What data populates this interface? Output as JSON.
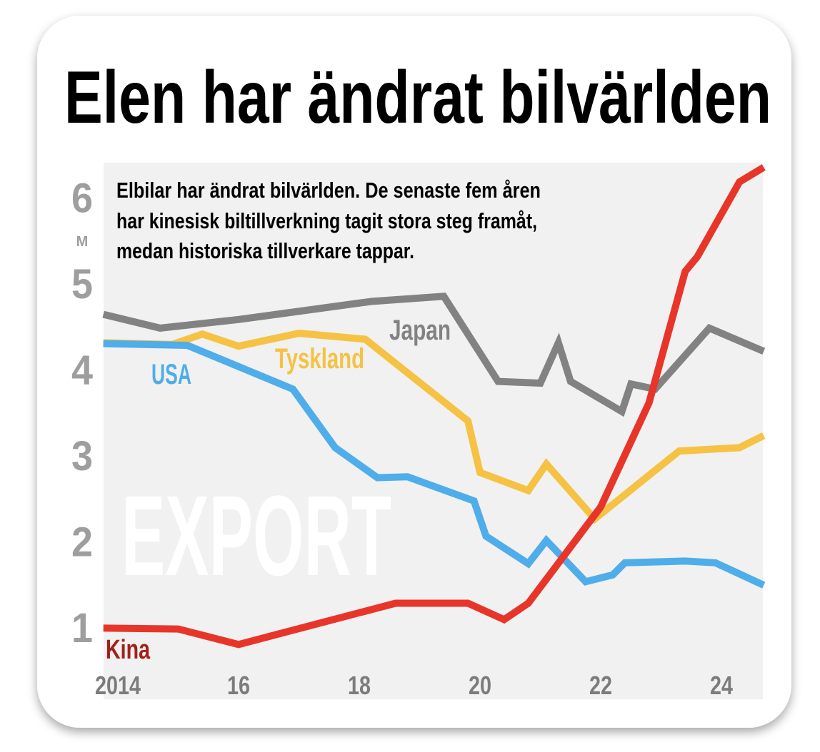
{
  "colors": {
    "card": "#ffffff",
    "plot_bg": "#f1f1f1",
    "Kina": "#e8352a",
    "Kina_label": "#a3201a",
    "Japan": "#828282",
    "Tyskland": "#f5c244",
    "USA": "#4fade9",
    "axis_text": "#9e9e9e",
    "x_text": "#7c7c7c",
    "watermark": "#ffffff"
  },
  "chart_data": {
    "type": "line",
    "title": "Elen har ändrat bilvärlden",
    "subtitle": [
      "Elbilar har ändrat bilvärlden. De senaste fem åren",
      "har kinesisk biltillverkning tagit stora steg framåt,",
      "medan historiska tillverkare tappar."
    ],
    "watermark": "EXPORT",
    "ylabel": "M",
    "xlim": [
      2013.76,
      2024.7
    ],
    "ylim": [
      0.6,
      6.45
    ],
    "yticks": [
      1,
      2,
      3,
      4,
      5,
      6
    ],
    "ytick_labels": [
      "1",
      "2",
      "3",
      "4",
      "5",
      "6"
    ],
    "xticks": [
      2014,
      2016,
      2018,
      2020,
      2022,
      2024
    ],
    "xtick_labels": [
      "2014",
      "16",
      "18",
      "20",
      "22",
      "24"
    ],
    "grid": false,
    "legend": "inline labels",
    "series": [
      {
        "name": "Japan",
        "x": [
          2013.76,
          2014.7,
          2016.0,
          2018.2,
          2019.4,
          2020.3,
          2021.0,
          2021.3,
          2021.5,
          2022.35,
          2022.5,
          2022.9,
          2023.8,
          2024.7
        ],
        "y": [
          4.63,
          4.47,
          4.57,
          4.78,
          4.84,
          3.85,
          3.83,
          4.3,
          3.85,
          3.5,
          3.82,
          3.76,
          4.47,
          4.2
        ]
      },
      {
        "name": "Tyskland",
        "x": [
          2013.76,
          2014.9,
          2015.4,
          2016.0,
          2017.0,
          2018.1,
          2019.8,
          2020.0,
          2020.8,
          2021.1,
          2021.9,
          2023.3,
          2024.3,
          2024.7
        ],
        "y": [
          4.3,
          4.28,
          4.4,
          4.26,
          4.41,
          4.34,
          3.39,
          2.79,
          2.58,
          2.89,
          2.25,
          3.04,
          3.08,
          3.22
        ]
      },
      {
        "name": "USA",
        "x": [
          2013.76,
          2015.15,
          2016.9,
          2017.6,
          2018.3,
          2018.8,
          2019.9,
          2020.1,
          2020.8,
          2021.1,
          2021.75,
          2022.2,
          2022.4,
          2023.4,
          2023.9,
          2024.7
        ],
        "y": [
          4.29,
          4.27,
          3.76,
          3.08,
          2.73,
          2.74,
          2.46,
          2.05,
          1.73,
          2.0,
          1.52,
          1.6,
          1.74,
          1.76,
          1.74,
          1.48
        ]
      },
      {
        "name": "Kina",
        "x": [
          2013.76,
          2015.0,
          2016.0,
          2018.6,
          2019.8,
          2020.4,
          2020.8,
          2022.0,
          2022.8,
          2023.4,
          2023.6,
          2024.3,
          2024.7
        ],
        "y": [
          0.98,
          0.97,
          0.79,
          1.27,
          1.27,
          1.08,
          1.27,
          2.39,
          3.6,
          5.13,
          5.3,
          6.17,
          6.34
        ]
      }
    ]
  }
}
